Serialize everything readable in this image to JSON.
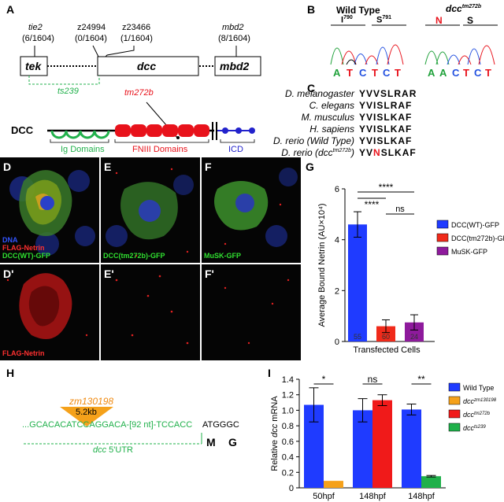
{
  "panelA": {
    "letter": "A",
    "markers": [
      {
        "name": "tie2",
        "count": "(6/1604)"
      },
      {
        "name": "z24994",
        "count": "(0/1604)"
      },
      {
        "name": "z23466",
        "count": "(1/1604)"
      },
      {
        "name": "mbd2",
        "count": "(8/1604)"
      }
    ],
    "genes": [
      "tek",
      "dcc",
      "mbd2"
    ],
    "ts239": "ts239",
    "tm272b": "tm272b",
    "dcc_protein": "DCC",
    "domains": [
      "Ig Domains",
      "FNIII Domains",
      "ICD"
    ],
    "colors": {
      "ig": "#22b14c",
      "fniii": "#e8121b",
      "icd": "#2222cc",
      "ts": "#22b14c",
      "tm": "#e8121b"
    }
  },
  "panelB": {
    "letter": "B",
    "wt_title": "Wild Type",
    "wt_res1": "I",
    "wt_res1_sup": "790",
    "wt_res2": "S",
    "wt_res2_sup": "791",
    "mut_title": "dcc",
    "mut_title_sup": "tm272b",
    "mut_res1": "N",
    "mut_res2": "S",
    "wt_bases": [
      "A",
      "T",
      "C",
      "T",
      "C",
      "T"
    ],
    "mut_bases": [
      "A",
      "A",
      "C",
      "T",
      "C",
      "T"
    ]
  },
  "panelC": {
    "letter": "C",
    "rows": [
      {
        "species": "D. melanogaster",
        "pre": "YVVSL",
        "mid": "",
        "post": "RAR"
      },
      {
        "species": "C. elegans",
        "pre": "YVISL",
        "mid": "",
        "post": "RAF"
      },
      {
        "species": "M. musculus",
        "pre": "YVISL",
        "mid": "",
        "post": "KAF"
      },
      {
        "species": "H. sapiens",
        "pre": "YVISL",
        "mid": "",
        "post": "KAF"
      },
      {
        "species": "D. rerio (Wild Type)",
        "pre": "YVISL",
        "mid": "",
        "post": "KAF"
      },
      {
        "species": "D. rerio (dcc",
        "species_sup": "tm272b",
        "species_end": ")",
        "pre": "YV",
        "mid": "N",
        "post": "SLKAF"
      }
    ]
  },
  "panelD": {
    "letter": "D",
    "labels": [
      "DNA",
      "FLAG-Netrin",
      "DCC(WT)-GFP"
    ]
  },
  "panelE": {
    "letter": "E",
    "labels": [
      "DCC(tm272b)-GFP"
    ]
  },
  "panelF": {
    "letter": "F",
    "labels": [
      "MuSK-GFP"
    ]
  },
  "panelD2": {
    "letter": "D'",
    "labels": [
      "FLAG-Netrin"
    ]
  },
  "panelE2": {
    "letter": "E'"
  },
  "panelF2": {
    "letter": "F'"
  },
  "panelG": {
    "letter": "G",
    "chart_data": {
      "type": "bar",
      "categories": [
        "DCC(WT)-GFP",
        "DCC(tm272b)-GFP",
        "MuSK-GFP"
      ],
      "values": [
        4.6,
        0.6,
        0.75
      ],
      "errors": [
        0.5,
        0.25,
        0.3
      ],
      "n": [
        "55",
        "60",
        "24"
      ],
      "colors": [
        "#1f3bff",
        "#f02a1a",
        "#8e1a9c"
      ],
      "ylabel": "Average Bound Netrin (AU×10⁴)",
      "xlabel": "Transfected Cells",
      "ylim": [
        0,
        6
      ],
      "yticks": [
        "0",
        "2",
        "4",
        "6"
      ],
      "sig": [
        "****",
        "****",
        "ns"
      ],
      "legend": [
        "DCC(WT)-GFP",
        "DCC(tm272b)-GFP",
        "MuSK-GFP"
      ]
    }
  },
  "panelH": {
    "letter": "H",
    "allele": "zm130198",
    "size": "5.2kb",
    "seq_left": "...GCACACATCCAGGACA-[92 nt]-TCCACC",
    "seq_right": "ATGGGC",
    "utr_prefix": "dcc",
    "utr": " 5'UTR",
    "aa1": "M",
    "aa2": "G"
  },
  "panelI": {
    "letter": "I",
    "chart_data": {
      "type": "bar",
      "categories": [
        "50hpf",
        "148hpf",
        "148hpf"
      ],
      "groups": [
        {
          "label": "50hpf",
          "bars": [
            {
              "series": "Wild Type",
              "value": 1.07,
              "err": 0.22
            },
            {
              "series": "dcc zm130198",
              "value": 0.09,
              "err": 0.0
            }
          ]
        },
        {
          "label": "148hpf",
          "bars": [
            {
              "series": "Wild Type",
              "value": 1.0,
              "err": 0.15
            },
            {
              "series": "dcc tm272b",
              "value": 1.13,
              "err": 0.07
            }
          ]
        },
        {
          "label": "148hpf",
          "bars": [
            {
              "series": "Wild Type",
              "value": 1.01,
              "err": 0.07
            },
            {
              "series": "dcc ts239",
              "value": 0.15,
              "err": 0.01
            }
          ]
        }
      ],
      "sig": [
        "*",
        "ns",
        "**"
      ],
      "ylabel_pre": "Relative ",
      "ylabel_it": "dcc",
      "ylabel_post": " mRNA",
      "ylim": [
        0,
        1.4
      ],
      "yticks": [
        "0",
        "0.2",
        "0.4",
        "0.6",
        "0.8",
        "1.0",
        "1.2",
        "1.4"
      ],
      "colors": {
        "Wild Type": "#1f3bff",
        "dcc zm130198": "#f5a11a",
        "dcc tm272b": "#f01a1a",
        "dcc ts239": "#1fb04a"
      },
      "legend": [
        {
          "name": "Wild Type",
          "base": "Wild Type",
          "sup": ""
        },
        {
          "name": "dcc zm130198",
          "base": "dcc",
          "sup": "zm130198"
        },
        {
          "name": "dcc tm272b",
          "base": "dcc",
          "sup": "tm272b"
        },
        {
          "name": "dcc ts239",
          "base": "dcc",
          "sup": "ts239"
        }
      ]
    }
  }
}
